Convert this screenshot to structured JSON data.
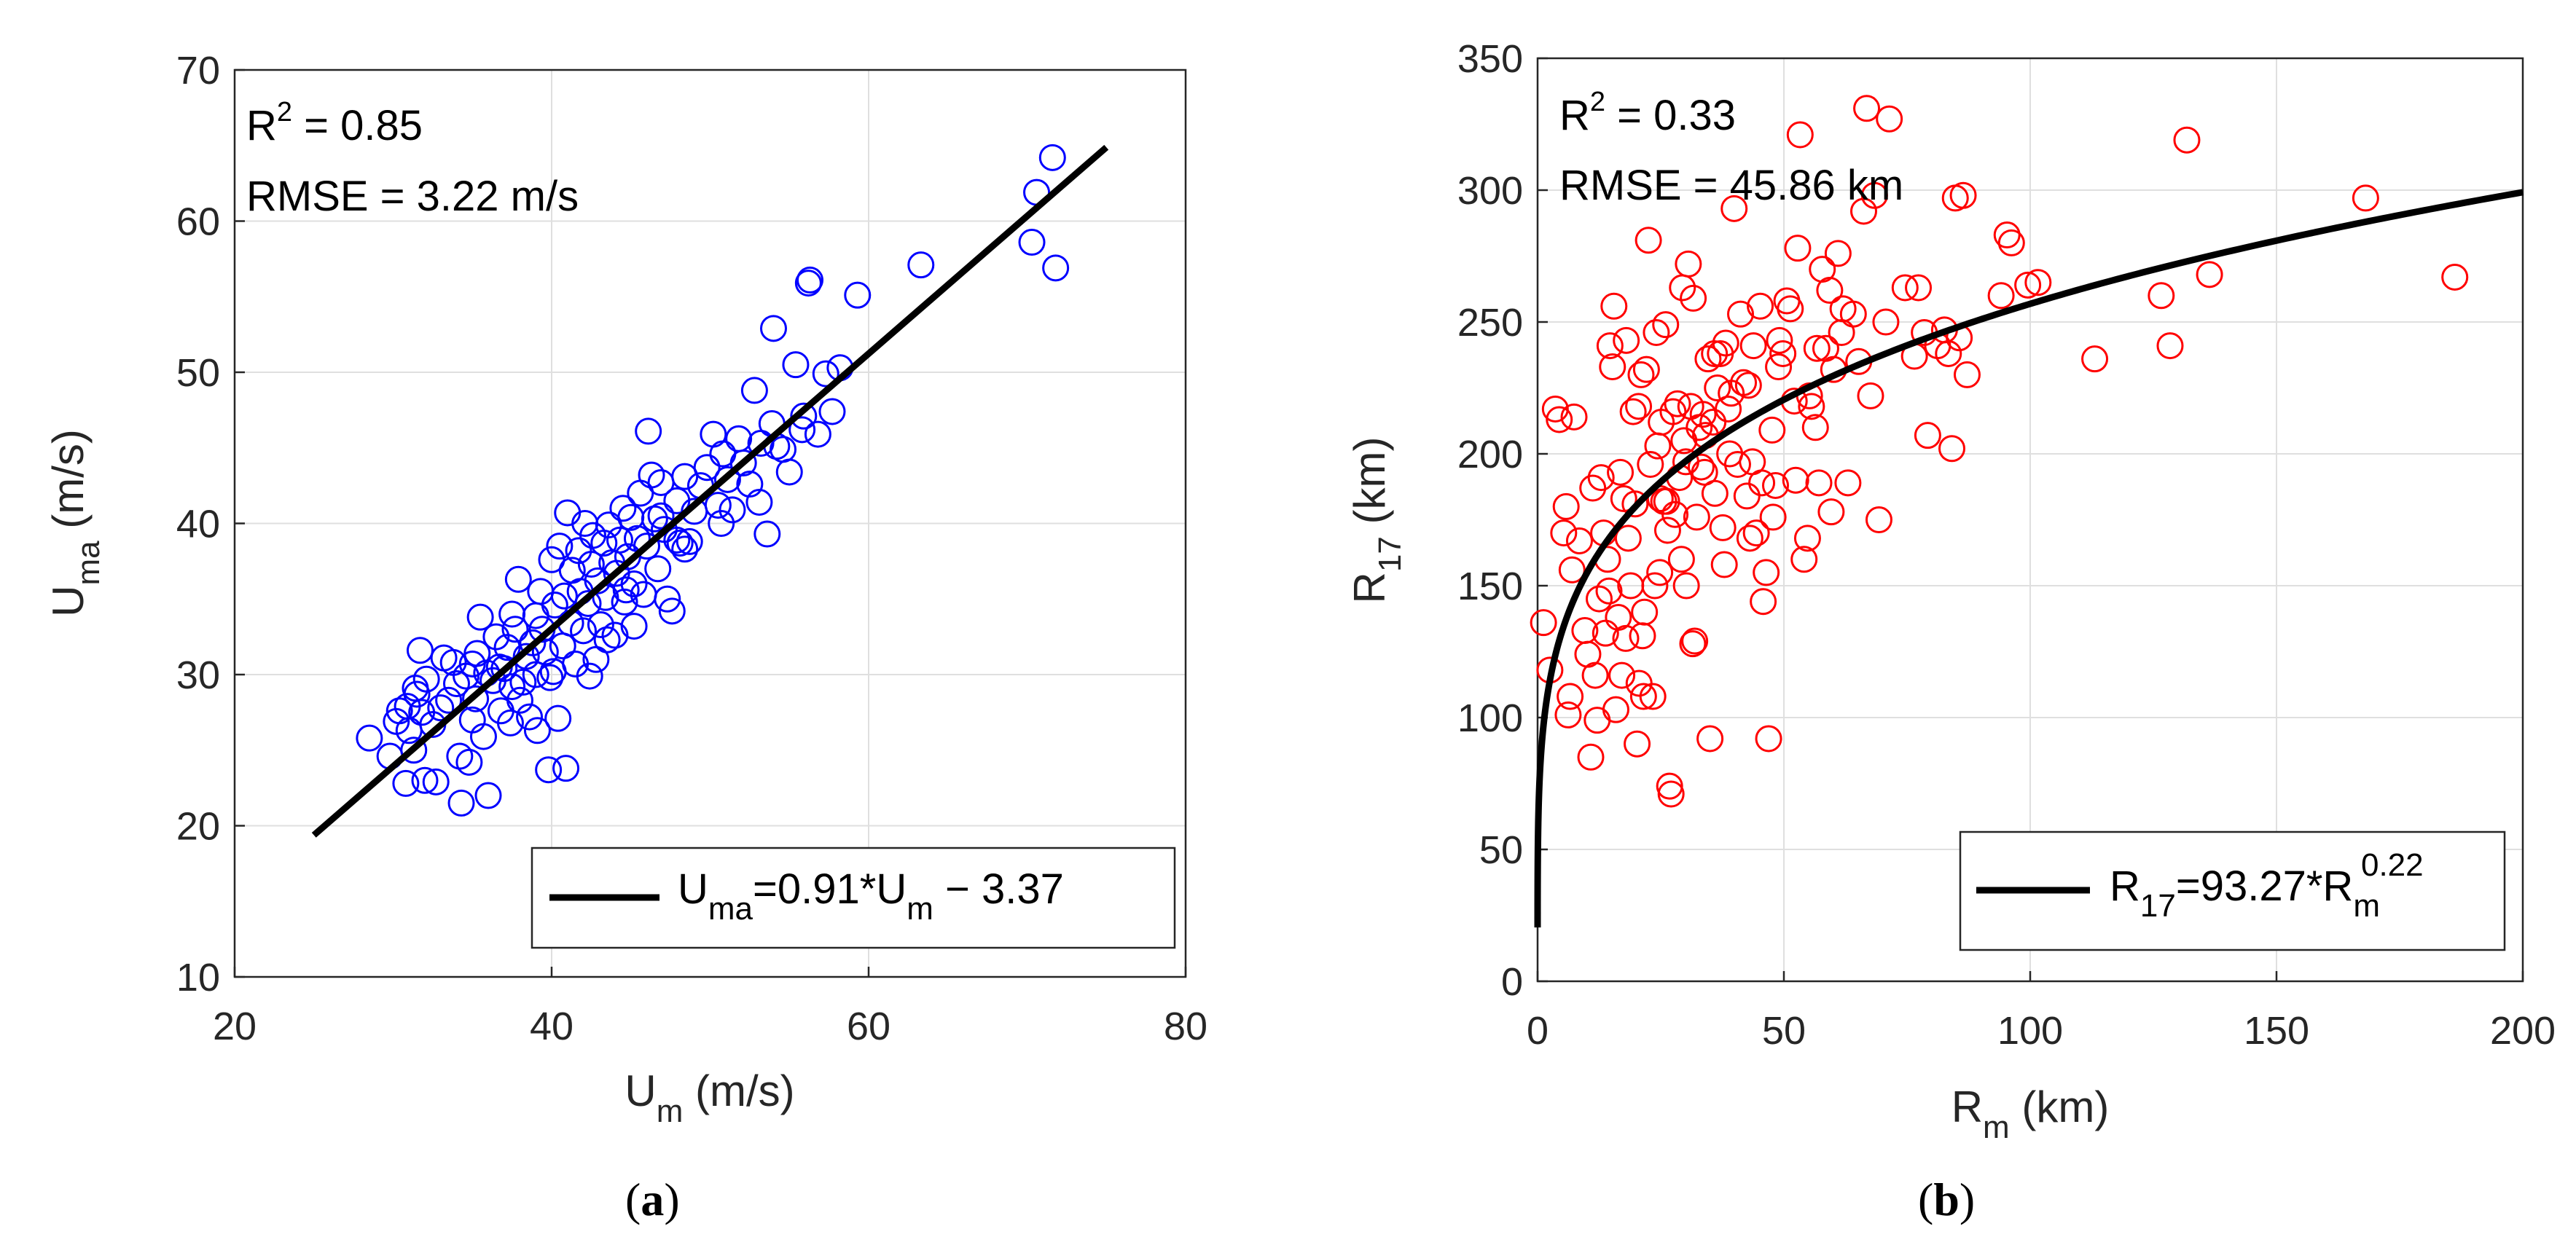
{
  "chart_data": [
    {
      "type": "scatter",
      "panel_label": "a",
      "xlabel_main": "U",
      "xlabel_sub": "m",
      "xlabel_unit": " (m/s)",
      "ylabel_main": "U",
      "ylabel_sub": "ma",
      "ylabel_unit": " (m/s)",
      "xlim": [
        20,
        80
      ],
      "ylim": [
        10,
        70
      ],
      "xticks": [
        20,
        40,
        60,
        80
      ],
      "yticks": [
        10,
        20,
        30,
        40,
        50,
        60,
        70
      ],
      "grid": true,
      "marker_color": "#0000ff",
      "r2_label": "R",
      "r2_exp": "2",
      "r2_value": " = 0.85",
      "rmse": "RMSE = 3.22 m/s",
      "fit": {
        "form": "linear",
        "a": 0.91,
        "b": -3.37,
        "x_range": [
          25,
          75
        ]
      },
      "legend": {
        "placement": "bottom-right",
        "parts": [
          "U",
          "ma",
          "=0.91*U",
          "m",
          " − 3.37"
        ]
      },
      "points": [
        [
          28.5,
          25.8
        ],
        [
          29.8,
          24.6
        ],
        [
          30.2,
          26.9
        ],
        [
          30.4,
          27.6
        ],
        [
          30.8,
          22.8
        ],
        [
          31.0,
          26.3
        ],
        [
          31.3,
          25.0
        ],
        [
          31.5,
          28.7
        ],
        [
          31.7,
          31.6
        ],
        [
          31.8,
          27.5
        ],
        [
          32.0,
          23.0
        ],
        [
          32.1,
          29.7
        ],
        [
          32.5,
          26.7
        ],
        [
          32.7,
          22.9
        ],
        [
          33.0,
          27.8
        ],
        [
          33.5,
          28.3
        ],
        [
          33.8,
          30.8
        ],
        [
          34.0,
          29.4
        ],
        [
          34.2,
          24.6
        ],
        [
          34.3,
          21.5
        ],
        [
          34.6,
          29.9
        ],
        [
          34.8,
          24.2
        ],
        [
          35.0,
          27.0
        ],
        [
          35.2,
          28.4
        ],
        [
          35.3,
          31.4
        ],
        [
          35.5,
          33.8
        ],
        [
          35.7,
          25.9
        ],
        [
          35.9,
          30.1
        ],
        [
          36.0,
          22.0
        ],
        [
          36.3,
          29.6
        ],
        [
          36.5,
          32.5
        ],
        [
          36.8,
          27.6
        ],
        [
          37.0,
          30.4
        ],
        [
          37.2,
          31.8
        ],
        [
          37.4,
          26.8
        ],
        [
          37.5,
          34.0
        ],
        [
          37.7,
          33.0
        ],
        [
          37.9,
          36.3
        ],
        [
          38.0,
          28.3
        ],
        [
          38.2,
          29.5
        ],
        [
          38.4,
          31.2
        ],
        [
          38.6,
          27.2
        ],
        [
          38.8,
          32.1
        ],
        [
          39.0,
          30.0
        ],
        [
          39.1,
          26.3
        ],
        [
          39.3,
          35.5
        ],
        [
          39.4,
          33.0
        ],
        [
          39.6,
          31.5
        ],
        [
          39.8,
          23.7
        ],
        [
          39.9,
          29.8
        ],
        [
          40.0,
          37.6
        ],
        [
          40.2,
          34.6
        ],
        [
          40.4,
          27.1
        ],
        [
          40.5,
          38.5
        ],
        [
          40.7,
          31.9
        ],
        [
          40.8,
          35.2
        ],
        [
          40.9,
          23.8
        ],
        [
          41.0,
          40.7
        ],
        [
          41.2,
          33.4
        ],
        [
          41.3,
          36.9
        ],
        [
          41.5,
          30.7
        ],
        [
          41.7,
          38.2
        ],
        [
          41.8,
          35.5
        ],
        [
          42.0,
          32.9
        ],
        [
          42.1,
          40.0
        ],
        [
          42.3,
          34.7
        ],
        [
          42.5,
          37.3
        ],
        [
          42.6,
          39.2
        ],
        [
          42.8,
          31.0
        ],
        [
          42.9,
          36.2
        ],
        [
          43.1,
          33.3
        ],
        [
          43.3,
          38.7
        ],
        [
          43.4,
          35.1
        ],
        [
          43.6,
          39.9
        ],
        [
          43.8,
          37.4
        ],
        [
          44.0,
          32.6
        ],
        [
          44.1,
          36.7
        ],
        [
          44.3,
          38.9
        ],
        [
          44.5,
          41.0
        ],
        [
          44.6,
          34.8
        ],
        [
          44.8,
          37.8
        ],
        [
          45.0,
          40.4
        ],
        [
          45.2,
          36.0
        ],
        [
          45.4,
          39.0
        ],
        [
          45.6,
          42.0
        ],
        [
          45.8,
          35.3
        ],
        [
          46.0,
          38.5
        ],
        [
          46.1,
          46.1
        ],
        [
          46.3,
          43.2
        ],
        [
          46.5,
          40.3
        ],
        [
          46.7,
          37.0
        ],
        [
          46.9,
          42.7
        ],
        [
          47.1,
          39.6
        ],
        [
          47.3,
          35.0
        ],
        [
          47.6,
          34.2
        ],
        [
          47.9,
          41.5
        ],
        [
          48.1,
          38.7
        ],
        [
          48.4,
          43.1
        ],
        [
          48.7,
          38.8
        ],
        [
          49.0,
          40.8
        ],
        [
          49.4,
          42.5
        ],
        [
          49.8,
          43.7
        ],
        [
          50.2,
          45.9
        ],
        [
          50.5,
          41.2
        ],
        [
          50.8,
          44.6
        ],
        [
          51.1,
          42.9
        ],
        [
          51.4,
          40.9
        ],
        [
          51.8,
          45.6
        ],
        [
          52.1,
          44.0
        ],
        [
          52.5,
          42.6
        ],
        [
          52.8,
          48.8
        ],
        [
          53.2,
          45.3
        ],
        [
          53.6,
          39.3
        ],
        [
          53.9,
          46.6
        ],
        [
          54.2,
          45.1
        ],
        [
          54.6,
          44.9
        ],
        [
          55.0,
          43.4
        ],
        [
          55.4,
          50.5
        ],
        [
          55.9,
          47.1
        ],
        [
          56.2,
          55.9
        ],
        [
          56.3,
          56.1
        ],
        [
          56.8,
          45.9
        ],
        [
          57.3,
          49.9
        ],
        [
          57.7,
          47.4
        ],
        [
          58.2,
          50.3
        ],
        [
          59.3,
          55.1
        ],
        [
          63.3,
          57.1
        ],
        [
          70.3,
          58.6
        ],
        [
          70.6,
          61.9
        ],
        [
          71.6,
          64.2
        ],
        [
          71.8,
          56.9
        ],
        [
          54.0,
          52.9
        ],
        [
          35.0,
          30.7
        ],
        [
          37.5,
          29.2
        ],
        [
          39.0,
          33.9
        ],
        [
          43.5,
          32.3
        ],
        [
          45.2,
          33.2
        ],
        [
          47.9,
          38.9
        ],
        [
          42.4,
          29.9
        ],
        [
          33.2,
          31.1
        ],
        [
          31.4,
          29.1
        ],
        [
          30.9,
          27.9
        ],
        [
          36.7,
          30.5
        ],
        [
          40.1,
          30.2
        ],
        [
          44.7,
          35.6
        ],
        [
          46.9,
          40.5
        ],
        [
          48.4,
          38.3
        ],
        [
          50.7,
          40.0
        ],
        [
          55.8,
          46.2
        ],
        [
          53.1,
          41.4
        ]
      ]
    },
    {
      "type": "scatter",
      "panel_label": "b",
      "xlabel_main": "R",
      "xlabel_sub": "m",
      "xlabel_unit": " (km)",
      "ylabel_main": "R",
      "ylabel_sub": "17",
      "ylabel_unit": " (km)",
      "xlim": [
        0,
        200
      ],
      "ylim": [
        0,
        350
      ],
      "xticks": [
        0,
        50,
        100,
        150,
        200
      ],
      "yticks": [
        0,
        50,
        100,
        150,
        200,
        250,
        300,
        350
      ],
      "grid": true,
      "marker_color": "#ff0000",
      "r2_label": "R",
      "r2_exp": "2",
      "r2_value": " = 0.33",
      "rmse": "RMSE = 45.86 km",
      "fit": {
        "form": "power",
        "a": 93.27,
        "b": 0.22,
        "x_range": [
          0.001,
          200
        ]
      },
      "legend": {
        "placement": "bottom-right",
        "parts": [
          "R",
          "17",
          "=93.27*R",
          "m",
          "0.22"
        ]
      },
      "points": [
        [
          1.2,
          136
        ],
        [
          2.5,
          118
        ],
        [
          3.6,
          217
        ],
        [
          4.4,
          213
        ],
        [
          5.3,
          170
        ],
        [
          5.8,
          180
        ],
        [
          6.2,
          101
        ],
        [
          6.6,
          108
        ],
        [
          7.0,
          156
        ],
        [
          7.4,
          214
        ],
        [
          8.5,
          167
        ],
        [
          9.6,
          133
        ],
        [
          10.2,
          124
        ],
        [
          10.8,
          85
        ],
        [
          11.2,
          187
        ],
        [
          11.7,
          116
        ],
        [
          12.1,
          99
        ],
        [
          12.5,
          145
        ],
        [
          12.9,
          191
        ],
        [
          13.4,
          170
        ],
        [
          13.8,
          132
        ],
        [
          14.2,
          160
        ],
        [
          14.7,
          241
        ],
        [
          15.2,
          233
        ],
        [
          15.5,
          256
        ],
        [
          15.9,
          103
        ],
        [
          16.4,
          138
        ],
        [
          16.8,
          193
        ],
        [
          17.1,
          116
        ],
        [
          17.5,
          183
        ],
        [
          18.0,
          243
        ],
        [
          18.4,
          168
        ],
        [
          18.9,
          150
        ],
        [
          19.4,
          216
        ],
        [
          19.8,
          181
        ],
        [
          20.2,
          90
        ],
        [
          20.6,
          113
        ],
        [
          21.0,
          230
        ],
        [
          21.3,
          131
        ],
        [
          21.7,
          140
        ],
        [
          22.1,
          232
        ],
        [
          22.5,
          281
        ],
        [
          22.9,
          196
        ],
        [
          23.4,
          108
        ],
        [
          23.8,
          150
        ],
        [
          24.1,
          246
        ],
        [
          24.4,
          203
        ],
        [
          24.8,
          155
        ],
        [
          25.1,
          212
        ],
        [
          25.6,
          182
        ],
        [
          26.0,
          249
        ],
        [
          26.4,
          171
        ],
        [
          26.8,
          74
        ],
        [
          27.1,
          71
        ],
        [
          27.5,
          216
        ],
        [
          27.9,
          177
        ],
        [
          28.4,
          219
        ],
        [
          28.8,
          191
        ],
        [
          29.2,
          160
        ],
        [
          29.7,
          205
        ],
        [
          30.1,
          197
        ],
        [
          30.6,
          272
        ],
        [
          31.1,
          218
        ],
        [
          31.5,
          128
        ],
        [
          31.9,
          129
        ],
        [
          32.3,
          176
        ],
        [
          32.8,
          210
        ],
        [
          33.2,
          195
        ],
        [
          33.6,
          215
        ],
        [
          34.1,
          207
        ],
        [
          34.6,
          236
        ],
        [
          35.0,
          92
        ],
        [
          35.6,
          212
        ],
        [
          36.0,
          185
        ],
        [
          36.5,
          225
        ],
        [
          37.1,
          238
        ],
        [
          37.6,
          172
        ],
        [
          38.2,
          242
        ],
        [
          38.7,
          217
        ],
        [
          39.3,
          223
        ],
        [
          39.9,
          293
        ],
        [
          40.6,
          196
        ],
        [
          41.2,
          253
        ],
        [
          41.8,
          227
        ],
        [
          42.5,
          184
        ],
        [
          43.1,
          168
        ],
        [
          43.8,
          241
        ],
        [
          44.4,
          170
        ],
        [
          45.2,
          256
        ],
        [
          45.8,
          144
        ],
        [
          46.4,
          155
        ],
        [
          46.9,
          92
        ],
        [
          47.6,
          209
        ],
        [
          48.3,
          188
        ],
        [
          49.1,
          243
        ],
        [
          49.8,
          238
        ],
        [
          50.6,
          258
        ],
        [
          51.3,
          255
        ],
        [
          52.1,
          220
        ],
        [
          52.8,
          278
        ],
        [
          53.3,
          321
        ],
        [
          54.1,
          160
        ],
        [
          54.8,
          168
        ],
        [
          55.6,
          218
        ],
        [
          56.4,
          210
        ],
        [
          57.1,
          189
        ],
        [
          57.8,
          270
        ],
        [
          58.5,
          240
        ],
        [
          59.3,
          262
        ],
        [
          60.1,
          232
        ],
        [
          61.0,
          276
        ],
        [
          62.0,
          255
        ],
        [
          63.0,
          189
        ],
        [
          64.1,
          253
        ],
        [
          65.2,
          235
        ],
        [
          66.2,
          292
        ],
        [
          66.8,
          331
        ],
        [
          67.6,
          222
        ],
        [
          68.4,
          298
        ],
        [
          69.3,
          175
        ],
        [
          70.7,
          250
        ],
        [
          71.4,
          327
        ],
        [
          74.6,
          263
        ],
        [
          76.5,
          237
        ],
        [
          77.3,
          263
        ],
        [
          78.5,
          246
        ],
        [
          79.2,
          207
        ],
        [
          81.2,
          241
        ],
        [
          82.6,
          247
        ],
        [
          83.4,
          238
        ],
        [
          84.1,
          202
        ],
        [
          84.8,
          297
        ],
        [
          85.6,
          244
        ],
        [
          86.4,
          298
        ],
        [
          87.2,
          230
        ],
        [
          94.1,
          260
        ],
        [
          95.3,
          283
        ],
        [
          96.2,
          280
        ],
        [
          99.5,
          264
        ],
        [
          101.6,
          265
        ],
        [
          113.1,
          236
        ],
        [
          126.6,
          260
        ],
        [
          128.4,
          241
        ],
        [
          131.8,
          319
        ],
        [
          136.4,
          268
        ],
        [
          168.1,
          297
        ],
        [
          186.2,
          267
        ],
        [
          20.5,
          218
        ],
        [
          24.9,
          183
        ],
        [
          29.4,
          263
        ],
        [
          31.6,
          259
        ],
        [
          33.9,
          193
        ],
        [
          35.9,
          238
        ],
        [
          39.0,
          200
        ],
        [
          42.8,
          226
        ],
        [
          45.5,
          189
        ],
        [
          47.8,
          176
        ],
        [
          52.4,
          190
        ],
        [
          56.7,
          240
        ],
        [
          59.6,
          178
        ],
        [
          14.5,
          148
        ],
        [
          17.9,
          130
        ],
        [
          21.5,
          108
        ],
        [
          26.2,
          182
        ],
        [
          30.2,
          150
        ],
        [
          37.9,
          158
        ],
        [
          43.6,
          197
        ],
        [
          48.9,
          233
        ],
        [
          55.2,
          222
        ],
        [
          61.7,
          246
        ]
      ]
    }
  ]
}
